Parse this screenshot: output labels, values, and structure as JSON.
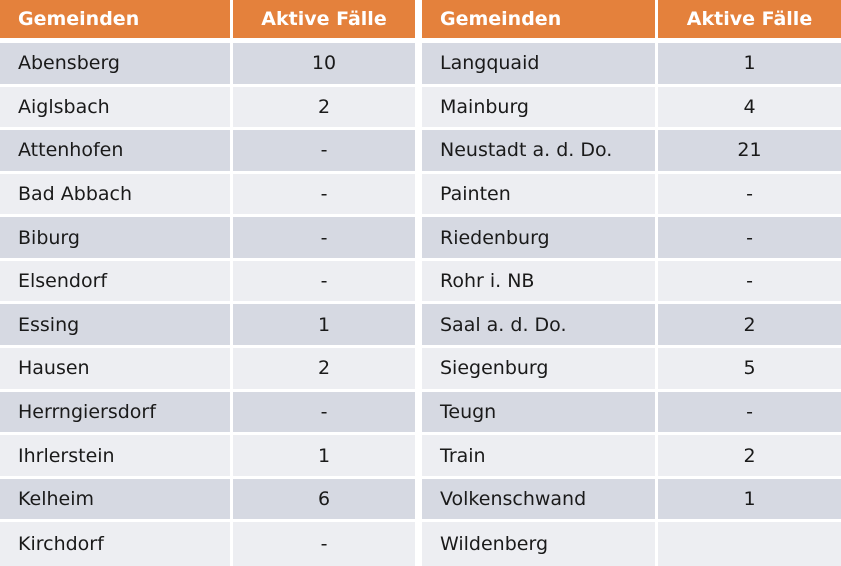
{
  "colors": {
    "header_bg": "#e4813c",
    "header_text": "#ffffff",
    "band_dark": "#d6d9e2",
    "band_light": "#edeef2",
    "body_text": "#1a1a1a",
    "separator": "#ffffff"
  },
  "chart_data": {
    "type": "table",
    "columns": [
      "Gemeinden",
      "Aktive Fälle",
      "Gemeinden",
      "Aktive Fälle"
    ],
    "rows": [
      [
        "Abensberg",
        "10",
        "Langquaid",
        "1"
      ],
      [
        "Aiglsbach",
        "2",
        "Mainburg",
        "4"
      ],
      [
        "Attenhofen",
        "-",
        "Neustadt a. d. Do.",
        "21"
      ],
      [
        "Bad Abbach",
        "-",
        "Painten",
        "-"
      ],
      [
        "Biburg",
        "-",
        "Riedenburg",
        "-"
      ],
      [
        "Elsendorf",
        "-",
        "Rohr i. NB",
        "-"
      ],
      [
        "Essing",
        "1",
        "Saal a. d. Do.",
        "2"
      ],
      [
        "Hausen",
        "2",
        "Siegenburg",
        "5"
      ],
      [
        "Herrngiersdorf",
        "-",
        "Teugn",
        "-"
      ],
      [
        "Ihrlerstein",
        "1",
        "Train",
        "2"
      ],
      [
        "Kelheim",
        "6",
        "Volkenschwand",
        "1"
      ],
      [
        "Kirchdorf",
        "-",
        "Wildenberg",
        ""
      ]
    ]
  }
}
